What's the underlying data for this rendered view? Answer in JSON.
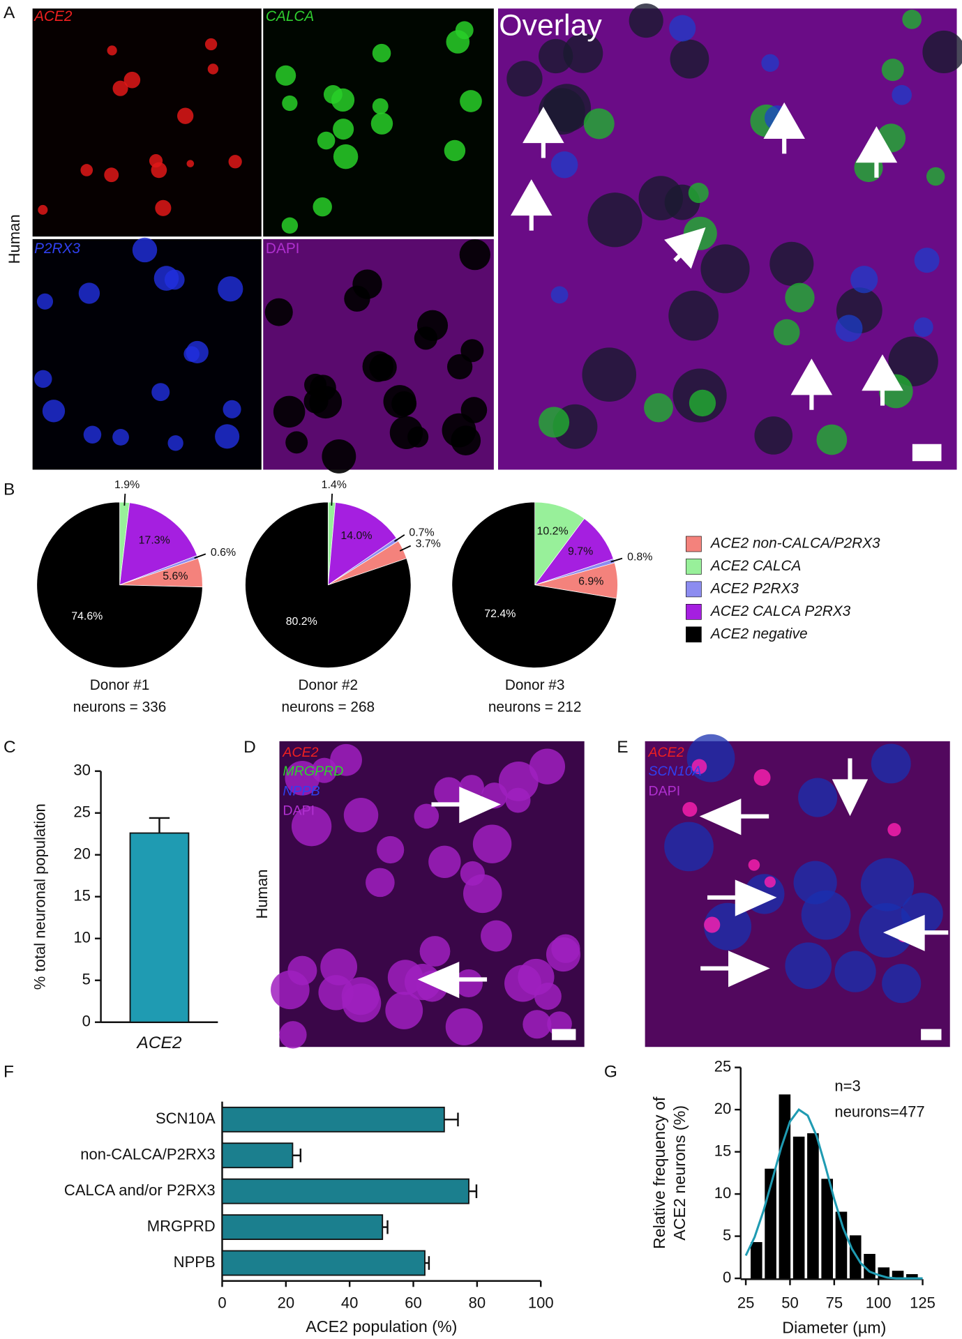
{
  "panel_labels": [
    "A",
    "B",
    "C",
    "D",
    "E",
    "F",
    "G"
  ],
  "images": {
    "human_label_a": "Human",
    "a_channels": [
      "ACE2",
      "CALCA",
      "P2RX3",
      "DAPI"
    ],
    "overlay": "Overlay",
    "d_channels": [
      "ACE2",
      "MRGPRD",
      "NPPB",
      "DAPI"
    ],
    "human_label_d": "Human",
    "e_channels": [
      "ACE2",
      "SCN10A",
      "DAPI"
    ]
  },
  "chart_data": [
    {
      "type": "pie",
      "title": "Donor #1",
      "subtitle": "neurons = 336",
      "categories": [
        "ACE2 non-CALCA/P2RX3",
        "ACE2 CALCA",
        "ACE2 P2RX3",
        "ACE2 CALCA P2RX3",
        "ACE2 negative"
      ],
      "colors": [
        "#f4827c",
        "#98f09a",
        "#8c8cf0",
        "#a51fe0",
        "#000000"
      ],
      "values": [
        5.6,
        1.9,
        0.6,
        17.3,
        74.6
      ],
      "value_labels": [
        "5.6%",
        "1.9%",
        "0.6%",
        "17.3%",
        "74.6%"
      ],
      "legend": "right"
    },
    {
      "type": "pie",
      "title": "Donor #2",
      "subtitle": "neurons = 268",
      "categories": [
        "ACE2 non-CALCA/P2RX3",
        "ACE2 CALCA",
        "ACE2 P2RX3",
        "ACE2 CALCA P2RX3",
        "ACE2 negative"
      ],
      "colors": [
        "#f4827c",
        "#98f09a",
        "#8c8cf0",
        "#a51fe0",
        "#000000"
      ],
      "values": [
        3.7,
        1.4,
        0.7,
        14.0,
        80.2
      ],
      "value_labels": [
        "3.7%",
        "1.4%",
        "0.7%",
        "14.0%",
        "80.2%"
      ]
    },
    {
      "type": "pie",
      "title": "Donor #3",
      "subtitle": "neurons = 212",
      "categories": [
        "ACE2 non-CALCA/P2RX3",
        "ACE2 CALCA",
        "ACE2 P2RX3",
        "ACE2 CALCA P2RX3",
        "ACE2 negative"
      ],
      "colors": [
        "#f4827c",
        "#98f09a",
        "#8c8cf0",
        "#a51fe0",
        "#000000"
      ],
      "values": [
        6.9,
        10.2,
        0.8,
        9.7,
        72.4
      ],
      "value_labels": [
        "6.9%",
        "10.2%",
        "0.8%",
        "9.7%",
        "72.4%"
      ]
    },
    {
      "type": "bar",
      "y_label": "% total neuronal population",
      "categories": [
        "ACE2"
      ],
      "values": [
        22.6
      ],
      "errors": [
        1.8
      ],
      "color": "#1f9bb2",
      "ylim": [
        0,
        30
      ],
      "yticks": [
        0,
        5,
        10,
        15,
        20,
        25,
        30
      ]
    },
    {
      "type": "hbar",
      "x_label": "ACE2 population (%)",
      "categories": [
        "SCN10A",
        "non-CALCA/P2RX3",
        "CALCA and/or P2RX3",
        "MRGPRD",
        "NPPB"
      ],
      "values": [
        69.7,
        22.1,
        77.4,
        50.3,
        63.6
      ],
      "errors": [
        4.3,
        2.5,
        2.4,
        1.6,
        1.3
      ],
      "color": "#1b7f8e",
      "xlim": [
        0,
        100
      ],
      "xticks": [
        0,
        20,
        40,
        60,
        80,
        100
      ]
    },
    {
      "type": "histogram",
      "x_label": "Diameter (µm)",
      "y_label": [
        "Relative frequency of",
        "ACE2 neurons (%)"
      ],
      "annotations": [
        "n=3",
        "neurons=477"
      ],
      "bins": [
        27,
        35,
        43,
        51,
        59,
        67,
        75,
        83,
        91,
        99,
        107,
        115,
        123
      ],
      "values": [
        4.3,
        13,
        21.8,
        16.8,
        17.2,
        11.8,
        7.9,
        5.1,
        2.9,
        1.3,
        0.9,
        0.5
      ],
      "color": "#000000",
      "fit": {
        "color": "#1f9bb2",
        "x": [
          25,
          30,
          35,
          40,
          45,
          50,
          55,
          60,
          65,
          70,
          75,
          80,
          85,
          90,
          95,
          100,
          105,
          110,
          115,
          120,
          125
        ],
        "y": [
          2.7,
          4.9,
          8.0,
          11.7,
          15.5,
          18.6,
          20.0,
          19.3,
          16.9,
          13.3,
          9.4,
          6.0,
          3.5,
          1.8,
          0.8,
          0.4,
          0.1,
          0.0,
          0.0,
          0.0,
          0.0
        ]
      },
      "xlim": [
        25,
        125
      ],
      "xticks": [
        25,
        50,
        75,
        100,
        125
      ],
      "ylim": [
        0,
        25
      ],
      "yticks": [
        0,
        5,
        10,
        15,
        20,
        25
      ]
    }
  ]
}
